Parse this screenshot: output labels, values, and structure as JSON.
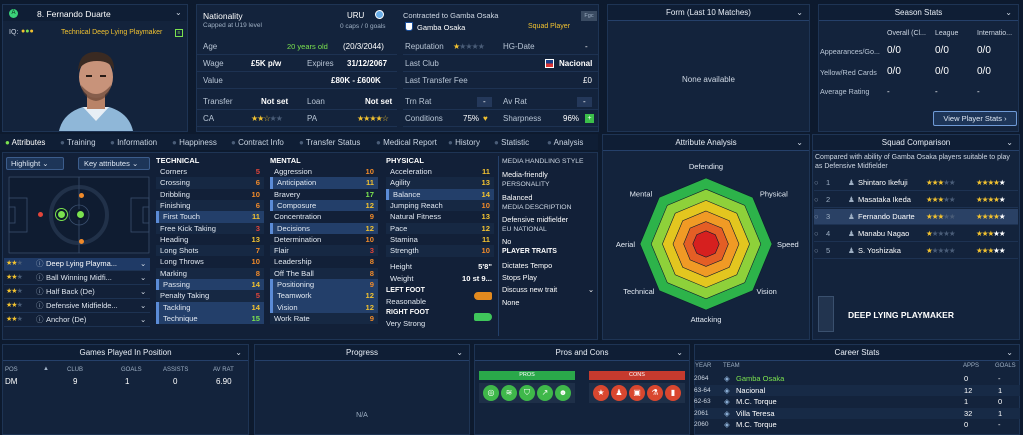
{
  "player": {
    "number_name": "8. Fernando Duarte",
    "role": "Technical Deep Lying Playmaker",
    "iq_label": "IQ:"
  },
  "nationality": {
    "title": "Nationality",
    "sub": "Capped at U19 level",
    "code": "URU",
    "caps": "0 caps / 0 goals"
  },
  "contract": {
    "title": "Contracted to Gamba Osaka",
    "club": "Gamba Osaka",
    "status": "Squad Player",
    "badge": "Fgc"
  },
  "info": [
    {
      "k": "Age",
      "v": "20 years old",
      "v2": "(20/3/2044)"
    },
    {
      "k": "Wage",
      "v": "£5K p/w",
      "k2": "Expires",
      "v2": "31/12/2067"
    },
    {
      "k": "Value",
      "v": "£80K - £600K"
    },
    {
      "k": "Transfer",
      "v": "Not set",
      "k2": "Loan",
      "v2": "Not set"
    },
    {
      "k": "CA",
      "k2": "PA"
    }
  ],
  "club_info": [
    {
      "k": "Reputation",
      "k2": "HG-Date",
      "v2": "-"
    },
    {
      "k": "Last Club",
      "v": "Nacional"
    },
    {
      "k": "Last Transfer Fee",
      "v": "£0"
    },
    {
      "k": "Trn Rat",
      "v": "-",
      "k2": "Av Rat",
      "v2": "-"
    },
    {
      "k": "Conditions",
      "v": "75%",
      "k2": "Sharpness",
      "v2": "96%"
    }
  ],
  "form": {
    "title": "Form (Last 10 Matches)",
    "empty": "None available"
  },
  "season": {
    "title": "Season Stats",
    "cols": [
      "Overall (Cl...",
      "League",
      "Internatio..."
    ],
    "rows": [
      {
        "k": "Appearances/Go...",
        "v": [
          "0/0",
          "0/0",
          "0/0"
        ]
      },
      {
        "k": "Yellow/Red Cards",
        "v": [
          "0/0",
          "0/0",
          "0/0"
        ]
      },
      {
        "k": "Average Rating",
        "v": [
          "-",
          "-",
          "-"
        ]
      }
    ],
    "button": "View Player Stats"
  },
  "tabs": [
    "Attributes",
    "Training",
    "Information",
    "Happiness",
    "Contract Info",
    "Transfer Status",
    "Medical Report",
    "History",
    "Statistic",
    "Analysis"
  ],
  "controls": {
    "highlight": "Highlight",
    "key_attr": "Key attributes"
  },
  "roles": [
    {
      "name": "Deep Lying Playma...",
      "active": true
    },
    {
      "name": "Ball Winning Midfi..."
    },
    {
      "name": "Half Back (De)"
    },
    {
      "name": "Defensive Midfielde..."
    },
    {
      "name": "Anchor (De)"
    }
  ],
  "technical": {
    "title": "TECHNICAL",
    "items": [
      [
        "Corners",
        "5"
      ],
      [
        "Crossing",
        "6"
      ],
      [
        "Dribbling",
        "10"
      ],
      [
        "Finishing",
        "6"
      ],
      [
        "First Touch",
        "11"
      ],
      [
        "Free Kick Taking",
        "3"
      ],
      [
        "Heading",
        "13"
      ],
      [
        "Long Shots",
        "7"
      ],
      [
        "Long Throws",
        "10"
      ],
      [
        "Marking",
        "8"
      ],
      [
        "Passing",
        "14"
      ],
      [
        "Penalty Taking",
        "5"
      ],
      [
        "Tackling",
        "14"
      ],
      [
        "Technique",
        "15"
      ]
    ]
  },
  "mental": {
    "title": "MENTAL",
    "items": [
      [
        "Aggression",
        "10"
      ],
      [
        "Anticipation",
        "11"
      ],
      [
        "Bravery",
        "17"
      ],
      [
        "Composure",
        "12"
      ],
      [
        "Concentration",
        "9"
      ],
      [
        "Decisions",
        "12"
      ],
      [
        "Determination",
        "10"
      ],
      [
        "Flair",
        "3"
      ],
      [
        "Leadership",
        "8"
      ],
      [
        "Off The Ball",
        "8"
      ],
      [
        "Positioning",
        "9"
      ],
      [
        "Teamwork",
        "12"
      ],
      [
        "Vision",
        "12"
      ],
      [
        "Work Rate",
        "9"
      ]
    ]
  },
  "physical": {
    "title": "PHYSICAL",
    "items": [
      [
        "Acceleration",
        "11"
      ],
      [
        "Agility",
        "13"
      ],
      [
        "Balance",
        "14"
      ],
      [
        "Jumping Reach",
        "10"
      ],
      [
        "Natural Fitness",
        "13"
      ],
      [
        "Pace",
        "12"
      ],
      [
        "Stamina",
        "11"
      ],
      [
        "Strength",
        "10"
      ]
    ],
    "height_k": "Height",
    "height_v": "5'8\"",
    "weight_k": "Weight",
    "weight_v": "10 st 9...",
    "left_foot_k": "LEFT FOOT",
    "left_foot_v": "Reasonable",
    "right_foot_k": "RIGHT FOOT",
    "right_foot_v": "Very Strong"
  },
  "media": {
    "h1": "MEDIA HANDLING STYLE",
    "v1": "Media-friendly",
    "h2": "PERSONALITY",
    "v2": "Balanced",
    "h3": "MEDIA DESCRIPTION",
    "v3": "Defensive midfielder",
    "h4": "EU NATIONAL",
    "v4": "No",
    "h5": "PLAYER TRAITS",
    "traits": [
      "Dictates Tempo",
      "Stops Play"
    ],
    "discuss": "Discuss new trait",
    "none": "None"
  },
  "analysis": {
    "title": "Attribute Analysis",
    "labels": [
      "Defending",
      "Physical",
      "Speed",
      "Vision",
      "Attacking",
      "Technical",
      "Aerial",
      "Mental"
    ]
  },
  "squad": {
    "title": "Squad Comparison",
    "desc": "Compared with ability of Gamba Osaka players suitable to play as Defensive Midfielder",
    "rows": [
      {
        "i": "1",
        "name": "Shintaro Ikefuji"
      },
      {
        "i": "2",
        "name": "Masataka Ikeda"
      },
      {
        "i": "3",
        "name": "Fernando Duarte",
        "active": true
      },
      {
        "i": "4",
        "name": "Manabu Nagao"
      },
      {
        "i": "5",
        "name": "S. Yoshizaka"
      }
    ],
    "role": "DEEP LYING PLAYMAKER"
  },
  "games": {
    "title": "Games Played In Position",
    "cols": [
      "POS",
      "CLUB",
      "GOALS",
      "ASSISTS",
      "AV RAT"
    ],
    "row": [
      "DM",
      "9",
      "1",
      "0",
      "6.90"
    ]
  },
  "progress": {
    "title": "Progress",
    "na": "N/A"
  },
  "proscons": {
    "title": "Pros and Cons",
    "pros": "PROS",
    "cons": "CONS"
  },
  "career": {
    "title": "Career Stats",
    "cols": [
      "YEAR",
      "TEAM",
      "APPS",
      "GOALS"
    ],
    "rows": [
      [
        "2064",
        "Gamba Osaka",
        "0",
        "-"
      ],
      [
        "63-64",
        "Nacional",
        "12",
        "1"
      ],
      [
        "62-63",
        "M.C. Torque",
        "1",
        "0"
      ],
      [
        "2061",
        "Villa Teresa",
        "32",
        "1"
      ],
      [
        "2060",
        "M.C. Torque",
        "0",
        "-"
      ]
    ]
  },
  "colors": {
    "bg": "#0d1a2e",
    "panel": "#13233c",
    "accent": "#5b8bd6",
    "green": "#7be24f",
    "star": "#f2c230"
  }
}
